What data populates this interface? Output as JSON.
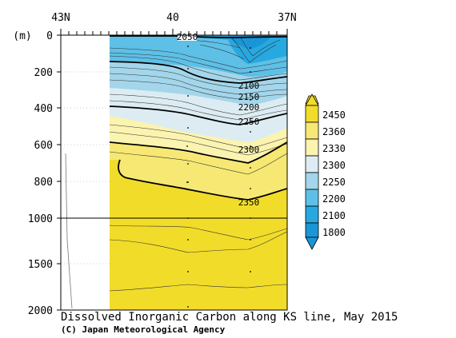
{
  "chart_data": {
    "type": "heatmap",
    "title": "Dissolved Inorganic Carbon along KS line, May 2015",
    "credit": "(C) Japan Meteorological Agency",
    "ylabel": "(m)",
    "x_ticks": [
      "43N",
      "40",
      "37N"
    ],
    "y_ticks": [
      "0",
      "200",
      "400",
      "600",
      "800",
      "1000",
      "1500",
      "2000"
    ],
    "y_range": [
      0,
      2000
    ],
    "y_break_depth": 1000,
    "x_range_lat": [
      43,
      37
    ],
    "colorbar": {
      "labels": [
        "2450",
        "2360",
        "2330",
        "2300",
        "2250",
        "2200",
        "2100",
        "1800"
      ],
      "colors": [
        "#f2dc2a",
        "#f6e873",
        "#fbf3b0",
        "#dcecf2",
        "#a3d6ea",
        "#5ec0e6",
        "#27a8e0",
        "#1a96d6"
      ]
    },
    "contour_labels": [
      "2050",
      "2100",
      "2150",
      "2200",
      "2250",
      "2300",
      "2350"
    ],
    "contours": [
      {
        "value": 2050,
        "depths": [
          7,
          7,
          7,
          8,
          10
        ]
      },
      {
        "value": 2100,
        "depths": [
          50,
          55,
          60,
          90,
          120
        ]
      },
      {
        "value": 2150,
        "depths": [
          90,
          100,
          110,
          150,
          165
        ]
      },
      {
        "value": 2200,
        "depths": [
          150,
          160,
          180,
          230,
          215
        ]
      },
      {
        "value": 2250,
        "depths": [
          290,
          320,
          350,
          390,
          320
        ]
      },
      {
        "value": 2300,
        "depths": [
          460,
          490,
          540,
          600,
          500
        ]
      },
      {
        "value": 2330,
        "depths": [
          560,
          600,
          650,
          720,
          610
        ]
      },
      {
        "value": 2350,
        "depths": [
          700,
          770,
          800,
          880,
          840
        ]
      }
    ]
  }
}
